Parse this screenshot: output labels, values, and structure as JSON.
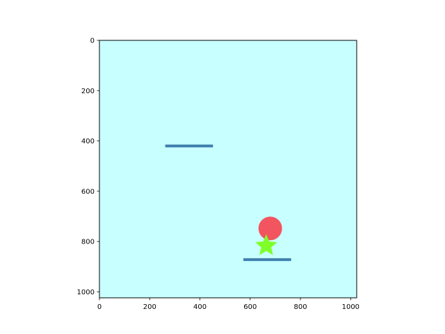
{
  "scene": {
    "background_color": "#c8ffff",
    "x_ticks": [
      0,
      200,
      400,
      600,
      800,
      1000
    ],
    "y_ticks": [
      0,
      200,
      400,
      600,
      800,
      1000
    ],
    "xlim": [
      0,
      1024
    ],
    "ylim": [
      1024,
      0
    ],
    "objects": [
      {
        "kind": "platform",
        "name": "platform-upper",
        "x1": 262,
        "x2": 452,
        "y": 420,
        "color": "#3f7fae"
      },
      {
        "kind": "platform",
        "name": "platform-lower",
        "x1": 573,
        "x2": 763,
        "y": 872,
        "color": "#3f7fae"
      },
      {
        "kind": "ball",
        "name": "ball",
        "cx": 680,
        "cy": 748,
        "r": 47,
        "color": "#f2555f"
      },
      {
        "kind": "star",
        "name": "star-goal",
        "cx": 664,
        "cy": 817,
        "r": 46,
        "color": "#7fff27"
      }
    ]
  }
}
